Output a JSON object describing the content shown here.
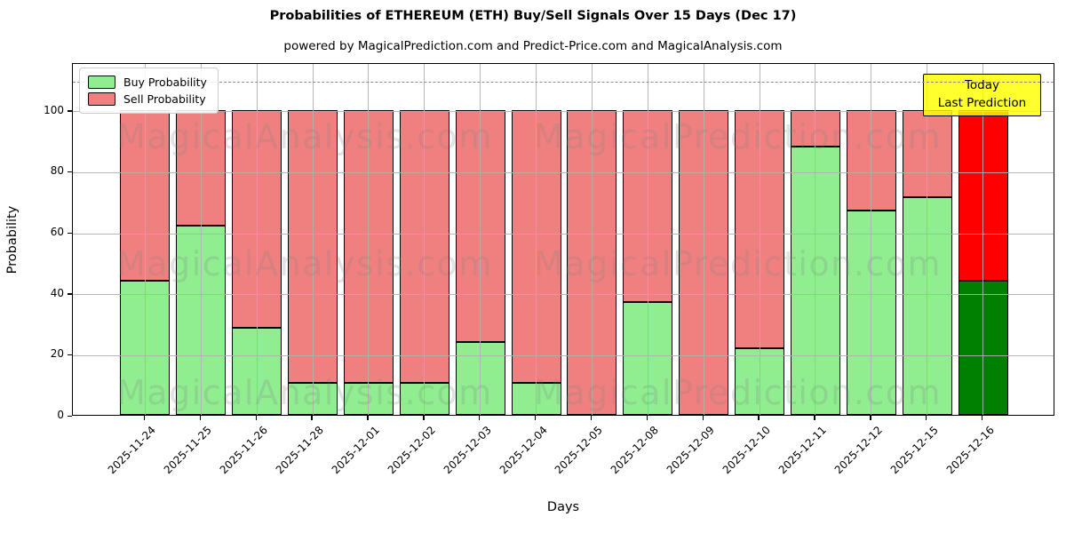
{
  "title": "Probabilities of ETHEREUM (ETH) Buy/Sell Signals Over 15 Days (Dec 17)",
  "subtitle": "powered by MagicalPrediction.com and Predict-Price.com and MagicalAnalysis.com",
  "legend": {
    "items": [
      {
        "label": "Buy Probability",
        "color": "#90EE90"
      },
      {
        "label": "Sell Probability",
        "color": "#F08080"
      }
    ]
  },
  "annotation": {
    "line1": "Today",
    "line2": "Last Prediction",
    "bg_color": "#FFFF00"
  },
  "axes": {
    "xlabel": "Days",
    "ylabel": "Probability",
    "yticks": [
      0,
      20,
      40,
      60,
      80,
      100
    ],
    "ylim": [
      0,
      115.7
    ],
    "dashed_line_y": 110,
    "grid": true
  },
  "watermarks": {
    "left_text": "MagicalAnalysis.com",
    "right_text": "MagicalPrediction.com"
  },
  "chart_data": {
    "type": "bar",
    "stacked": true,
    "title": "Probabilities of ETHEREUM (ETH) Buy/Sell Signals Over 15 Days (Dec 17)",
    "xlabel": "Days",
    "ylabel": "Probability",
    "ylim": [
      0,
      115.7
    ],
    "legend_position": "upper left",
    "categories": [
      "2025-11-24",
      "2025-11-25",
      "2025-11-26",
      "2025-11-28",
      "2025-12-01",
      "2025-12-02",
      "2025-12-03",
      "2025-12-04",
      "2025-12-05",
      "2025-12-08",
      "2025-12-09",
      "2025-12-10",
      "2025-12-11",
      "2025-12-12",
      "2025-12-15",
      "2025-12-16"
    ],
    "series": [
      {
        "name": "Buy Probability",
        "values": [
          44,
          62,
          28.5,
          10.5,
          10.5,
          10.5,
          24,
          10.5,
          0,
          37,
          0,
          22,
          88,
          67,
          71.5,
          44
        ]
      },
      {
        "name": "Sell Probability",
        "values": [
          56,
          38,
          71.5,
          89.5,
          89.5,
          89.5,
          76,
          89.5,
          100,
          63,
          100,
          78,
          12,
          33,
          28.5,
          56
        ]
      }
    ],
    "colors": {
      "buy": "#90EE90",
      "sell": "#F08080",
      "today_buy": "#008000",
      "today_sell": "#FF0000"
    },
    "today_index": 15
  }
}
